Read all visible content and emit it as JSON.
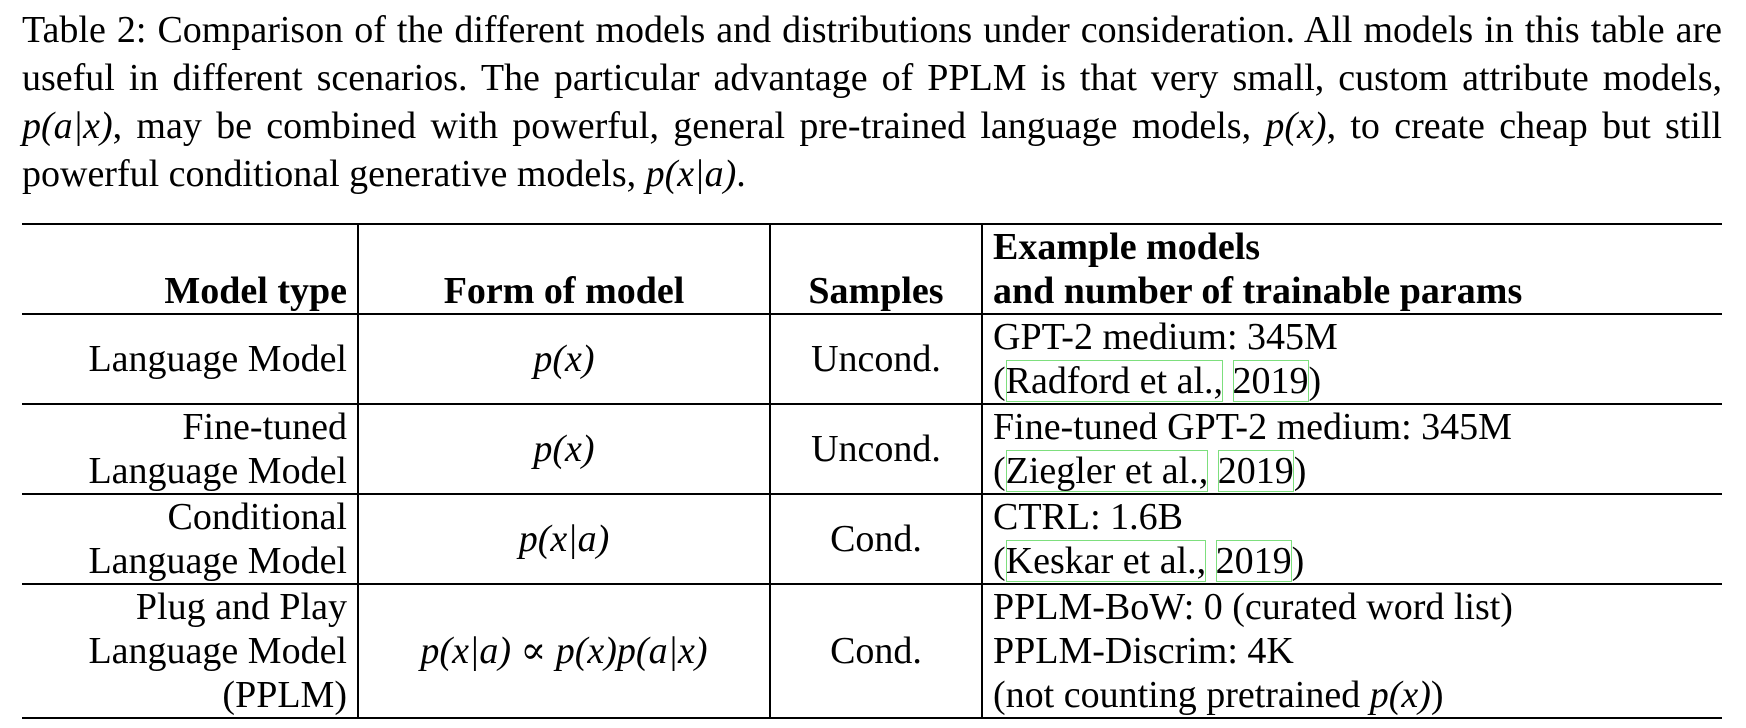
{
  "caption": {
    "text_1": "Table 2: Comparison of the different models and distributions under consideration. All models in this table are useful in different scenarios. The particular advantage of PPLM is that very small, custom attribute models, ",
    "math_1": "p(a|x)",
    "text_2": ", may be combined with powerful, general pre-trained language models, ",
    "math_2": "p(x)",
    "text_3": ", to create cheap but still powerful conditional generative models, ",
    "math_3": "p(x|a)",
    "text_4": "."
  },
  "table": {
    "headers": {
      "model_type": "Model type",
      "form_of_model": "Form of model",
      "samples": "Samples",
      "example_line_1": "Example models",
      "example_line_2": "and number of trainable params"
    },
    "rows": [
      {
        "model_type": [
          "Language Model"
        ],
        "form": "p(x)",
        "samples": "Uncond.",
        "example_line_1": "GPT-2 medium: 345M",
        "cite_open": "(",
        "cite_author": "Radford et al.,",
        "cite_year": "2019",
        "cite_close": ")"
      },
      {
        "model_type": [
          "Fine-tuned",
          "Language Model"
        ],
        "form": "p(x)",
        "samples": "Uncond.",
        "example_line_1": "Fine-tuned GPT-2 medium: 345M",
        "cite_open": "(",
        "cite_author": "Ziegler et al.,",
        "cite_year": "2019",
        "cite_close": ")"
      },
      {
        "model_type": [
          "Conditional",
          "Language Model"
        ],
        "form": "p(x|a)",
        "samples": "Cond.",
        "example_line_1": "CTRL: 1.6B",
        "cite_open": "(",
        "cite_author": "Keskar et al.,",
        "cite_year": "2019",
        "cite_close": ")"
      },
      {
        "model_type": [
          "Plug and Play",
          "Language Model",
          "(PPLM)"
        ],
        "form": "p(x|a) ∝ p(x)p(a|x)",
        "samples": "Cond.",
        "example_line_1": "PPLM-BoW: 0 (curated word list)",
        "example_line_2": "PPLM-Discrim: 4K",
        "example_line_3_pre": "(not counting pretrained ",
        "example_line_3_math": "p(x)",
        "example_line_3_post": ")"
      }
    ]
  }
}
